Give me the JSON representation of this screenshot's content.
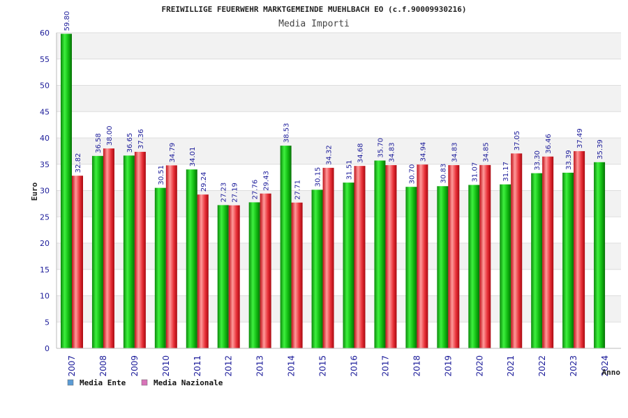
{
  "chart_data": {
    "type": "bar",
    "title": "FREIWILLIGE FEUERWEHR MARKTGEMEINDE MUEHLBACH EO (c.f.90009930216)",
    "subtitle": "Media Importi",
    "xlabel": "Anno",
    "ylabel": "Euro",
    "ylim": [
      0,
      60
    ],
    "yticks": [
      0,
      5,
      10,
      15,
      20,
      25,
      30,
      35,
      40,
      45,
      50,
      55,
      60
    ],
    "grid": true,
    "legend_position": "bottom-left",
    "categories": [
      "2007",
      "2008",
      "2009",
      "2010",
      "2011",
      "2012",
      "2013",
      "2014",
      "2015",
      "2016",
      "2017",
      "2018",
      "2019",
      "2020",
      "2021",
      "2022",
      "2023",
      "2024"
    ],
    "series": [
      {
        "name": "Media Ente",
        "color": "#16c316",
        "legend_color": "#5b9bd5",
        "values": [
          59.8,
          36.58,
          36.65,
          30.51,
          34.01,
          27.23,
          27.76,
          38.53,
          30.15,
          31.51,
          35.7,
          30.7,
          30.83,
          31.07,
          31.17,
          33.3,
          33.39,
          35.39
        ],
        "labels": [
          "59.80",
          "36.58",
          "36.65",
          "30.51",
          "34.01",
          "27.23",
          "27.76",
          "38.53",
          "30.15",
          "31.51",
          "35.70",
          "30.70",
          "30.83",
          "31.07",
          "31.17",
          "33.30",
          "33.39",
          "35.39"
        ]
      },
      {
        "name": "Media Nazionale",
        "color": "#e8202a",
        "legend_color": "#d873b8",
        "values": [
          32.82,
          38.0,
          37.36,
          34.79,
          29.24,
          27.19,
          29.43,
          27.71,
          34.32,
          34.68,
          34.83,
          34.94,
          34.83,
          34.85,
          37.05,
          36.46,
          37.49,
          null
        ],
        "labels": [
          "32.82",
          "38.00",
          "37.36",
          "34.79",
          "29.24",
          "27.19",
          "29.43",
          "27.71",
          "34.32",
          "34.68",
          "34.83",
          "34.94",
          "34.83",
          "34.85",
          "37.05",
          "36.46",
          "37.49",
          null
        ]
      }
    ]
  }
}
